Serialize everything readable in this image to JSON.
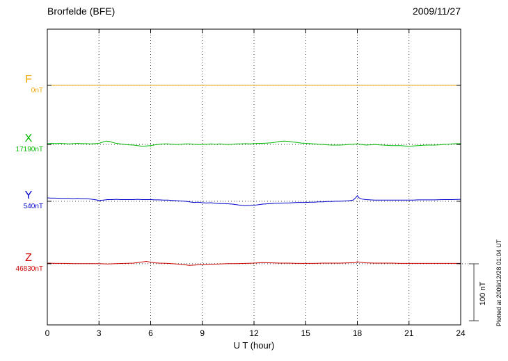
{
  "chart_data": {
    "type": "line",
    "title": "Brorfelde (BFE)",
    "date": "2009/11/27",
    "xlabel": "U T (hour)",
    "xlim": [
      0,
      24
    ],
    "x_ticks": [
      0,
      3,
      6,
      9,
      12,
      15,
      18,
      21,
      24
    ],
    "grid": "dotted",
    "scale_bar": {
      "nT": 100,
      "label": "100 nT"
    },
    "plotted_note": "Plotted at 2009/12/28 01:04 UT",
    "series": [
      {
        "name": "F",
        "baseline_label": "0nT",
        "color": "#F0A500",
        "points": [
          [
            0,
            0
          ],
          [
            24,
            0
          ]
        ]
      },
      {
        "name": "X",
        "baseline_label": "17190nT",
        "color": "#00B800",
        "points": [
          [
            0,
            1.5
          ],
          [
            0.25,
            2
          ],
          [
            0.5,
            1.5
          ],
          [
            0.75,
            2
          ],
          [
            1,
            1.5
          ],
          [
            1.25,
            1
          ],
          [
            1.5,
            1.5
          ],
          [
            1.75,
            2
          ],
          [
            2,
            1.5
          ],
          [
            2.25,
            1.5
          ],
          [
            2.5,
            1
          ],
          [
            2.75,
            1.5
          ],
          [
            3,
            2
          ],
          [
            3.2,
            4
          ],
          [
            3.4,
            6
          ],
          [
            3.6,
            5.5
          ],
          [
            3.8,
            3.5
          ],
          [
            4,
            2
          ],
          [
            4.25,
            1
          ],
          [
            4.5,
            0
          ],
          [
            4.75,
            -0.5
          ],
          [
            5,
            -1
          ],
          [
            5.25,
            -2
          ],
          [
            5.5,
            -3
          ],
          [
            5.75,
            -2.5
          ],
          [
            6,
            -2
          ],
          [
            6.25,
            -0.5
          ],
          [
            6.5,
            0.5
          ],
          [
            6.75,
            1
          ],
          [
            7,
            1
          ],
          [
            7.25,
            0.5
          ],
          [
            7.5,
            0
          ],
          [
            7.75,
            0.5
          ],
          [
            8,
            1
          ],
          [
            8.25,
            1
          ],
          [
            8.5,
            0.5
          ],
          [
            8.75,
            0
          ],
          [
            9,
            0
          ],
          [
            9.25,
            0.5
          ],
          [
            9.5,
            1
          ],
          [
            9.75,
            0.5
          ],
          [
            10,
            1
          ],
          [
            10.25,
            0.5
          ],
          [
            10.5,
            0
          ],
          [
            10.75,
            0.5
          ],
          [
            11,
            1
          ],
          [
            11.25,
            1
          ],
          [
            11.5,
            1.5
          ],
          [
            11.75,
            1
          ],
          [
            12,
            1.5
          ],
          [
            12.25,
            2
          ],
          [
            12.5,
            2
          ],
          [
            12.75,
            2.5
          ],
          [
            13,
            3
          ],
          [
            13.25,
            4
          ],
          [
            13.5,
            5.5
          ],
          [
            13.75,
            6
          ],
          [
            14,
            5.5
          ],
          [
            14.25,
            4.5
          ],
          [
            14.5,
            3.5
          ],
          [
            14.75,
            2.5
          ],
          [
            15,
            2
          ],
          [
            15.25,
            1.5
          ],
          [
            15.5,
            1
          ],
          [
            15.75,
            0.5
          ],
          [
            16,
            0
          ],
          [
            16.25,
            -0.5
          ],
          [
            16.5,
            -1
          ],
          [
            16.75,
            -1
          ],
          [
            17,
            -1
          ],
          [
            17.25,
            -0.5
          ],
          [
            17.5,
            0
          ],
          [
            17.75,
            0.5
          ],
          [
            18,
            1
          ],
          [
            18.25,
            0
          ],
          [
            18.5,
            -1
          ],
          [
            18.75,
            -0.5
          ],
          [
            19,
            0
          ],
          [
            19.25,
            -0.5
          ],
          [
            19.5,
            -1
          ],
          [
            19.75,
            -1.5
          ],
          [
            20,
            -2
          ],
          [
            20.25,
            -2
          ],
          [
            20.5,
            -2
          ],
          [
            20.75,
            -2.5
          ],
          [
            21,
            -3
          ],
          [
            21.25,
            -2.5
          ],
          [
            21.5,
            -2
          ],
          [
            21.75,
            -1.5
          ],
          [
            22,
            -1
          ],
          [
            22.25,
            -1
          ],
          [
            22.5,
            -1
          ],
          [
            22.75,
            -0.5
          ],
          [
            23,
            0
          ],
          [
            23.25,
            0.5
          ],
          [
            23.5,
            1
          ],
          [
            23.75,
            1.5
          ],
          [
            24,
            1.5
          ]
        ]
      },
      {
        "name": "Y",
        "baseline_label": "540nT",
        "color": "#0000CC",
        "points": [
          [
            0,
            6
          ],
          [
            0.25,
            5.5
          ],
          [
            0.5,
            5.5
          ],
          [
            0.75,
            5
          ],
          [
            1,
            5
          ],
          [
            1.25,
            5
          ],
          [
            1.5,
            4.5
          ],
          [
            1.75,
            5
          ],
          [
            2,
            4.5
          ],
          [
            2.25,
            4.5
          ],
          [
            2.5,
            4
          ],
          [
            2.75,
            3
          ],
          [
            3,
            1.5
          ],
          [
            3.25,
            2
          ],
          [
            3.5,
            3
          ],
          [
            3.75,
            3
          ],
          [
            4,
            3.5
          ],
          [
            4.25,
            3
          ],
          [
            4.5,
            3
          ],
          [
            4.75,
            3
          ],
          [
            5,
            3
          ],
          [
            5.25,
            3.5
          ],
          [
            5.5,
            3
          ],
          [
            5.75,
            3
          ],
          [
            6,
            3
          ],
          [
            6.25,
            2.5
          ],
          [
            6.5,
            2.5
          ],
          [
            6.75,
            2
          ],
          [
            7,
            2
          ],
          [
            7.25,
            1.5
          ],
          [
            7.5,
            1
          ],
          [
            7.75,
            0.5
          ],
          [
            8,
            0
          ],
          [
            8.25,
            -1
          ],
          [
            8.5,
            -2
          ],
          [
            8.75,
            -1.5
          ],
          [
            9,
            -2.5
          ],
          [
            9.25,
            -3
          ],
          [
            9.5,
            -2.5
          ],
          [
            9.75,
            -3.5
          ],
          [
            10,
            -4
          ],
          [
            10.25,
            -4
          ],
          [
            10.5,
            -4.5
          ],
          [
            10.75,
            -5
          ],
          [
            11,
            -6
          ],
          [
            11.25,
            -7
          ],
          [
            11.5,
            -8
          ],
          [
            11.75,
            -7.5
          ],
          [
            12,
            -7
          ],
          [
            12.25,
            -6
          ],
          [
            12.5,
            -5
          ],
          [
            12.75,
            -4.5
          ],
          [
            13,
            -4
          ],
          [
            13.25,
            -3.5
          ],
          [
            13.5,
            -3.5
          ],
          [
            13.75,
            -3
          ],
          [
            14,
            -3
          ],
          [
            14.25,
            -2.5
          ],
          [
            14.5,
            -2
          ],
          [
            14.75,
            -2
          ],
          [
            15,
            -2
          ],
          [
            15.25,
            -1.5
          ],
          [
            15.5,
            -1.5
          ],
          [
            15.75,
            -1
          ],
          [
            16,
            -1
          ],
          [
            16.25,
            -0.5
          ],
          [
            16.5,
            -0.5
          ],
          [
            16.75,
            0
          ],
          [
            17,
            0
          ],
          [
            17.25,
            0.5
          ],
          [
            17.5,
            1
          ],
          [
            17.75,
            2
          ],
          [
            17.9,
            6
          ],
          [
            18,
            10
          ],
          [
            18.1,
            6
          ],
          [
            18.25,
            4
          ],
          [
            18.5,
            3
          ],
          [
            18.75,
            2.5
          ],
          [
            19,
            2
          ],
          [
            19.25,
            2
          ],
          [
            19.5,
            2
          ],
          [
            19.75,
            2
          ],
          [
            20,
            2
          ],
          [
            20.25,
            2
          ],
          [
            20.5,
            2
          ],
          [
            20.75,
            2
          ],
          [
            21,
            2
          ],
          [
            21.25,
            2
          ],
          [
            21.5,
            2.5
          ],
          [
            22,
            2.5
          ],
          [
            22.5,
            2.5
          ],
          [
            23,
            3
          ],
          [
            23.5,
            3
          ],
          [
            24,
            3.5
          ]
        ]
      },
      {
        "name": "Z",
        "baseline_label": "46830nT",
        "color": "#CC0000",
        "points": [
          [
            0,
            1
          ],
          [
            0.5,
            0.5
          ],
          [
            1,
            0.5
          ],
          [
            1.5,
            0
          ],
          [
            2,
            0
          ],
          [
            2.5,
            0
          ],
          [
            3,
            0
          ],
          [
            3.5,
            -0.5
          ],
          [
            4,
            0
          ],
          [
            4.5,
            0.5
          ],
          [
            5,
            1
          ],
          [
            5.25,
            2
          ],
          [
            5.5,
            3
          ],
          [
            5.75,
            4
          ],
          [
            6,
            2.5
          ],
          [
            6.25,
            1.5
          ],
          [
            6.5,
            1
          ],
          [
            7,
            0.5
          ],
          [
            7.5,
            -0.5
          ],
          [
            8,
            -2
          ],
          [
            8.25,
            -3
          ],
          [
            8.5,
            -2.5
          ],
          [
            8.75,
            -2
          ],
          [
            9,
            -1.5
          ],
          [
            9.5,
            -1
          ],
          [
            10,
            -0.5
          ],
          [
            10.5,
            0
          ],
          [
            11,
            0
          ],
          [
            11.5,
            0.5
          ],
          [
            12,
            1
          ],
          [
            12.5,
            2
          ],
          [
            13,
            1.5
          ],
          [
            13.5,
            1
          ],
          [
            14,
            1
          ],
          [
            14.5,
            0.5
          ],
          [
            15,
            0.5
          ],
          [
            15.5,
            0.5
          ],
          [
            16,
            1
          ],
          [
            16.5,
            1
          ],
          [
            17,
            1
          ],
          [
            17.5,
            1.5
          ],
          [
            17.9,
            2
          ],
          [
            18,
            3.5
          ],
          [
            18.15,
            2.5
          ],
          [
            18.5,
            1.5
          ],
          [
            19,
            1
          ],
          [
            19.5,
            1
          ],
          [
            20,
            1
          ],
          [
            20.5,
            0.5
          ],
          [
            21,
            0.5
          ],
          [
            21.5,
            0.5
          ],
          [
            22,
            0.5
          ],
          [
            22.5,
            0.5
          ],
          [
            23,
            0.5
          ],
          [
            23.5,
            0.5
          ],
          [
            24,
            0.5
          ]
        ]
      }
    ]
  }
}
